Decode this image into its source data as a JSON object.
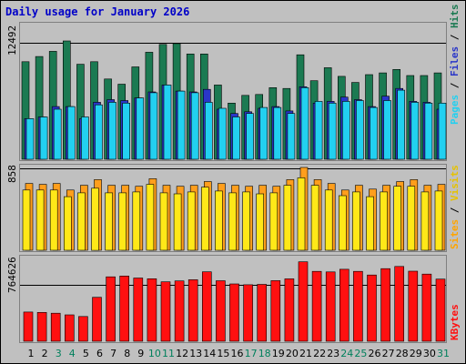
{
  "chart_data": {
    "type": "bar",
    "title": "Daily usage for January 2026",
    "days": [
      "1",
      "2",
      "3",
      "4",
      "5",
      "6",
      "7",
      "8",
      "9",
      "10",
      "11",
      "12",
      "13",
      "14",
      "15",
      "16",
      "17",
      "18",
      "19",
      "20",
      "21",
      "22",
      "23",
      "24",
      "25",
      "26",
      "27",
      "28",
      "29",
      "30",
      "31"
    ],
    "weekend_days": [
      "3",
      "4",
      "10",
      "11",
      "17",
      "18",
      "24",
      "25",
      "31"
    ],
    "panels": {
      "requests": {
        "tick_label": "12492",
        "tick_value": 12492,
        "ylim": [
          0,
          15600
        ],
        "label_parts": [
          "Pages",
          " / ",
          "Files",
          " / ",
          "Hits"
        ],
        "series": [
          {
            "name": "Hits",
            "color": "#1b7a52",
            "values": [
              11300,
              11900,
              12500,
              13700,
              11000,
              11300,
              9300,
              8700,
              10700,
              12400,
              13300,
              13400,
              12200,
              12200,
              8600,
              6500,
              7400,
              7500,
              8300,
              8200,
              12100,
              9100,
              10600,
              9600,
              8900,
              9800,
              10000,
              10400,
              9700,
              9700,
              10000
            ]
          },
          {
            "name": "Files",
            "color": "#2a36c8",
            "values": [
              4700,
              4900,
              6100,
              6100,
              4700,
              6600,
              6900,
              6800,
              7100,
              7800,
              8600,
              7900,
              7800,
              8100,
              5800,
              5300,
              5500,
              5900,
              6100,
              5600,
              8400,
              6500,
              6700,
              7200,
              6900,
              6100,
              7300,
              8200,
              6700,
              6600,
              5800
            ]
          },
          {
            "name": "Pages",
            "color": "#22d0f0",
            "values": [
              4700,
              4900,
              5800,
              6100,
              4900,
              6300,
              6600,
              6500,
              7100,
              7700,
              8600,
              7900,
              7700,
              6600,
              5900,
              4900,
              5300,
              6000,
              6000,
              5300,
              8300,
              6700,
              6500,
              6700,
              6800,
              6000,
              6800,
              8000,
              6600,
              6500,
              6500
            ]
          }
        ]
      },
      "visits": {
        "tick_label": "858",
        "tick_value": 858,
        "ylim": [
          0,
          880
        ],
        "label_parts": [
          "Sites",
          " / ",
          "Visits"
        ],
        "series": [
          {
            "name": "Visits",
            "color": "#ff9e1c",
            "values": [
              710,
              700,
              710,
              640,
              690,
              750,
              690,
              690,
              680,
              760,
              690,
              680,
              690,
              730,
              710,
              690,
              680,
              690,
              680,
              750,
              880,
              750,
              710,
              640,
              690,
              650,
              690,
              730,
              750,
              690,
              700
            ]
          },
          {
            "name": "Sites",
            "color": "#ffe818",
            "values": [
              640,
              640,
              640,
              570,
              610,
              660,
              610,
              610,
              620,
              700,
              610,
              600,
              620,
              670,
              630,
              610,
              620,
              600,
              610,
              690,
              770,
              690,
              640,
              580,
              620,
              570,
              620,
              680,
              680,
              620,
              630
            ]
          }
        ]
      },
      "kbytes": {
        "tick_label": "764626",
        "tick_value": 764626,
        "ylim": [
          0,
          990000
        ],
        "label_parts": [
          "KBytes"
        ],
        "series": [
          {
            "name": "KBytes",
            "color": "#ff1010",
            "values": [
              349000,
              345000,
              335000,
              315000,
              296000,
              525000,
              770000,
              780000,
              756000,
              747000,
              710000,
              721000,
              735000,
              830000,
              723000,
              685000,
              676000,
              680000,
              725000,
              746000,
              950000,
              835000,
              829000,
              860000,
              835000,
              792000,
              868000,
              894000,
              838000,
              803000,
              743000
            ]
          }
        ]
      }
    },
    "colors": {
      "background": "#c0c0c0",
      "bevel_dark": "#808080",
      "bevel_light": "#ffffff",
      "gridline": "#000000",
      "weekday_label": "#000000",
      "weekend_label": "#00805c",
      "pages_label": "#22d0f0",
      "files_label": "#2a36c8",
      "hits_label": "#1b7a52",
      "sites_label": "#ffa500",
      "visits_label": "#e6c200",
      "kbytes_label": "#ff1010",
      "sep_label": "#000000"
    }
  }
}
